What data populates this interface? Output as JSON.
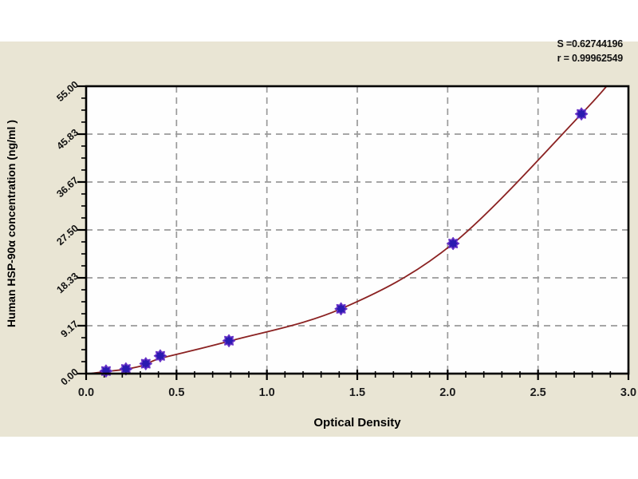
{
  "stats": {
    "s_label": "S =",
    "s_value": "0.62744196",
    "r_label": "r = ",
    "r_value": "0.99962549"
  },
  "chart_data": {
    "type": "scatter",
    "title": "",
    "xlabel": "Optical Density",
    "ylabel": "Human HSP-90α concentration (ng/ml )",
    "xlim": [
      0,
      3
    ],
    "ylim": [
      0,
      55
    ],
    "x_ticks": [
      0,
      0.5,
      1,
      1.5,
      2,
      2.5,
      3
    ],
    "x_tick_labels": [
      "0.0",
      "0.5",
      "1.0",
      "1.5",
      "2.0",
      "2.5",
      "3.0"
    ],
    "y_ticks": [
      0,
      9.17,
      18.33,
      27.5,
      36.67,
      45.83,
      55
    ],
    "y_tick_labels": [
      "0.00",
      "9.17",
      "18.33",
      "27.50",
      "36.67",
      "45.83",
      "55.00"
    ],
    "x_minor_step": 0.1,
    "y_minor_step": 2.292,
    "grid": "dashed",
    "legend_position": "none",
    "points": [
      [
        0.11,
        0.5
      ],
      [
        0.22,
        0.9
      ],
      [
        0.33,
        1.9
      ],
      [
        0.41,
        3.4
      ],
      [
        0.79,
        6.3
      ],
      [
        1.41,
        12.4
      ],
      [
        2.03,
        24.9
      ],
      [
        2.74,
        49.7
      ]
    ],
    "curve_points": [
      [
        0.03,
        0.05
      ],
      [
        0.11,
        0.4
      ],
      [
        0.22,
        0.85
      ],
      [
        0.33,
        1.7
      ],
      [
        0.41,
        2.9
      ],
      [
        0.79,
        6.2
      ],
      [
        1.41,
        12.4
      ],
      [
        2.03,
        24.9
      ],
      [
        2.74,
        49.7
      ],
      [
        2.95,
        58
      ]
    ],
    "colors": {
      "panel": "#e9e5d4",
      "plot_bg": "#fefefe",
      "grid": "#9a9a9a",
      "axis": "#000000",
      "curve": "#8b2222",
      "marker_fill": "#2a1bb0",
      "marker_edge": "#6a35c8",
      "tick_label": "#1c1c1c"
    }
  }
}
